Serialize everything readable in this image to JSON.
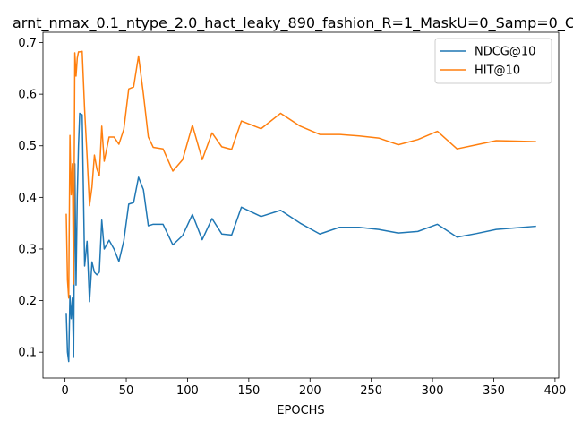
{
  "chart_data": {
    "type": "line",
    "title": "arnt_nmax_0.1_ntype_2.0_hact_leaky_890_fashion_R=1_MaskU=0_Samp=0_C",
    "xlabel": "EPOCHS",
    "ylabel": "",
    "xlim": [
      -18,
      403
    ],
    "ylim": [
      0.05,
      0.72
    ],
    "xticks": [
      0,
      50,
      100,
      150,
      200,
      250,
      300,
      350,
      400
    ],
    "yticks": [
      0.1,
      0.2,
      0.3,
      0.4,
      0.5,
      0.6,
      0.7
    ],
    "grid": false,
    "legend_position": "top-right",
    "series": [
      {
        "name": "NDCG@10",
        "color": "#1f77b4",
        "x": [
          1,
          2,
          3,
          4,
          5,
          6,
          7,
          8,
          9,
          10,
          11,
          12,
          14,
          16,
          18,
          20,
          22,
          24,
          26,
          28,
          30,
          32,
          36,
          40,
          44,
          48,
          52,
          56,
          60,
          64,
          68,
          72,
          80,
          88,
          96,
          104,
          112,
          120,
          128,
          136,
          144,
          160,
          176,
          192,
          208,
          224,
          240,
          256,
          272,
          288,
          304,
          320,
          336,
          352,
          368,
          384
        ],
        "values": [
          0.175,
          0.1,
          0.082,
          0.21,
          0.165,
          0.205,
          0.09,
          0.465,
          0.23,
          0.4,
          0.5,
          0.563,
          0.56,
          0.267,
          0.315,
          0.198,
          0.275,
          0.255,
          0.25,
          0.255,
          0.356,
          0.3,
          0.317,
          0.3,
          0.276,
          0.316,
          0.387,
          0.39,
          0.439,
          0.415,
          0.345,
          0.348,
          0.348,
          0.308,
          0.326,
          0.367,
          0.318,
          0.359,
          0.329,
          0.327,
          0.381,
          0.363,
          0.375,
          0.35,
          0.329,
          0.342,
          0.342,
          0.338,
          0.331,
          0.334,
          0.348,
          0.323,
          0.33,
          0.338,
          0.341,
          0.344
        ]
      },
      {
        "name": "HIT@10",
        "color": "#ff7f0e",
        "x": [
          1,
          2,
          3,
          4,
          5,
          6,
          7,
          8,
          9,
          10,
          11,
          12,
          14,
          16,
          18,
          20,
          22,
          24,
          26,
          28,
          30,
          32,
          36,
          40,
          44,
          48,
          52,
          56,
          60,
          64,
          68,
          72,
          80,
          88,
          96,
          104,
          112,
          120,
          128,
          136,
          144,
          160,
          176,
          192,
          208,
          224,
          240,
          256,
          272,
          288,
          304,
          320,
          336,
          352,
          368,
          384
        ],
        "values": [
          0.367,
          0.24,
          0.205,
          0.52,
          0.405,
          0.465,
          0.232,
          0.68,
          0.635,
          0.67,
          0.682,
          0.682,
          0.683,
          0.57,
          0.48,
          0.384,
          0.42,
          0.482,
          0.455,
          0.442,
          0.538,
          0.47,
          0.517,
          0.517,
          0.503,
          0.532,
          0.61,
          0.614,
          0.674,
          0.6,
          0.517,
          0.497,
          0.494,
          0.451,
          0.473,
          0.54,
          0.473,
          0.525,
          0.498,
          0.493,
          0.548,
          0.533,
          0.563,
          0.538,
          0.522,
          0.522,
          0.519,
          0.515,
          0.502,
          0.512,
          0.528,
          0.494,
          0.502,
          0.51,
          0.509,
          0.508
        ]
      }
    ]
  }
}
